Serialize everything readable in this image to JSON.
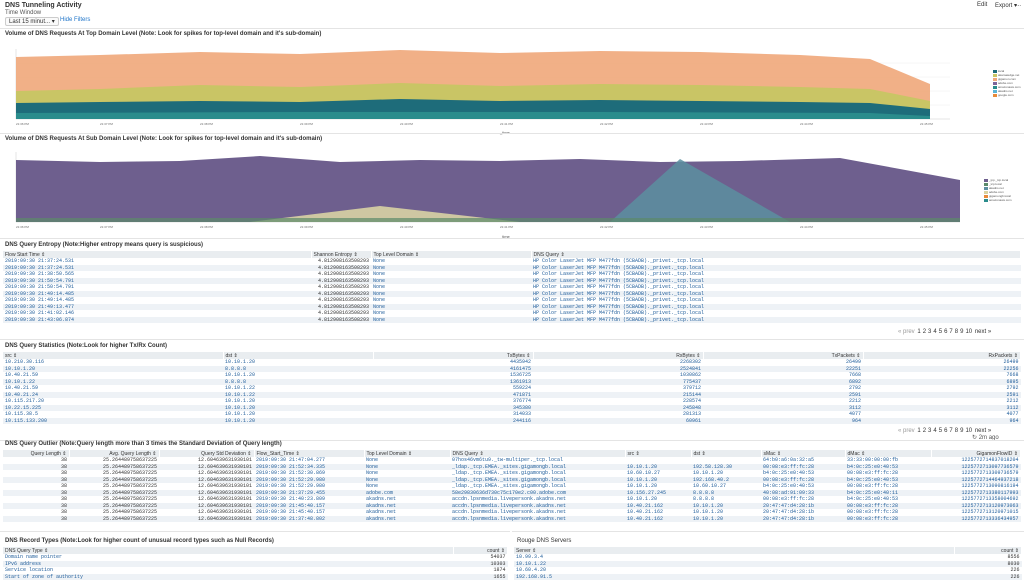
{
  "header": {
    "title": "DNS Tunneling Activity",
    "time_window_label": "Time Window",
    "time_window_value": "Last 15 minut...",
    "hide_filters": "Hide Filters",
    "edit": "Edit",
    "export": "Export",
    "more": "..."
  },
  "chart1": {
    "title": "Volume of DNS Requests At Top Domain Level (Note: Look for spikes for top-level domain and it's sub-domain)",
    "xlabel": "_time",
    "ylabel": "",
    "legend": [
      "local",
      "akamaiedge.net",
      "gigamon.com",
      "adobe.com",
      "amazonaws.com",
      "akadns.net",
      "google.com",
      "other"
    ]
  },
  "chart2": {
    "title": "Volume of DNS Requests At Sub Domain Level (Note: Look for spikes for top-level domain and it's sub-domain)",
    "xlabel": "_time",
    "ylabel": "",
    "legend": [
      "_ipp._tcp.local",
      "_tcp.local",
      "akadns.net",
      "adobe.com",
      "gigamongb.local",
      "amazonaws.com",
      "other"
    ]
  },
  "chart_data": [
    {
      "type": "area",
      "title": "Volume of DNS Requests At Top Domain Level (Note: Look for spikes for top-level domain and it's sub-domain)",
      "series": [
        {
          "name": "local",
          "values": [
            90,
            95,
            92,
            98,
            94,
            96,
            93,
            88,
            70
          ]
        },
        {
          "name": "akamaiedge.net",
          "values": [
            40,
            42,
            40,
            44,
            42,
            43,
            42,
            40,
            30
          ]
        },
        {
          "name": "gigamon.com",
          "values": [
            60,
            62,
            58,
            64,
            60,
            61,
            59,
            57,
            45
          ]
        },
        {
          "name": "other",
          "values": [
            50,
            55,
            52,
            56,
            54,
            55,
            53,
            51,
            42
          ]
        }
      ]
    },
    {
      "type": "area",
      "title": "Volume of DNS Requests At Sub Domain Level (Note: Look for spikes for top-level domain and it's sub-domain)",
      "series": [
        {
          "name": "_ipp._tcp.local",
          "values": [
            2100,
            2000,
            2050,
            2000,
            2250,
            2000,
            2050,
            1950,
            2000,
            1950,
            2000,
            1500
          ]
        },
        {
          "name": "akadns.net",
          "values": [
            0,
            0,
            0,
            0,
            0,
            0,
            0,
            0,
            1900,
            0,
            0,
            0
          ]
        },
        {
          "name": "adobe.com",
          "values": [
            0,
            0,
            0,
            0,
            0,
            300,
            0,
            0,
            0,
            0,
            0,
            0
          ]
        }
      ]
    }
  ],
  "entropy": {
    "title": "DNS Query Entropy (Note:Higher entropy means query is suspicious)",
    "headers": [
      "Flow Start Time",
      "Shannon Entropy",
      "Top Level Domain",
      "DNS Query"
    ],
    "rows": [
      [
        "2019:09:30 21:37:24.531",
        "4.812908163508293",
        "None",
        "HP Color LaserJet MFP M477fdn (5CBADB)._privet._tcp.local"
      ],
      [
        "2019:09:30 21:37:24.531",
        "4.812908163508293",
        "None",
        "HP Color LaserJet MFP M477fdn (5CBADB)._privet._tcp.local"
      ],
      [
        "2019:09:30 21:38:50.565",
        "4.812908163508293",
        "None",
        "HP Color LaserJet MFP M477fdn (5CBADB)._privet._tcp.local"
      ],
      [
        "2019:09:30 21:50:54.791",
        "4.812908163508293",
        "None",
        "HP Color LaserJet MFP M477fdn (5CBADB)._privet._tcp.local"
      ],
      [
        "2019:09:30 21:50:54.791",
        "4.812908163508293",
        "None",
        "HP Color LaserJet MFP M477fdn (5CBADB)._privet._tcp.local"
      ],
      [
        "2019:09:30 21:49:14.485",
        "4.812908163508293",
        "None",
        "HP Color LaserJet MFP M477fdn (5CBADB)._privet._tcp.local"
      ],
      [
        "2019:09:30 21:49:14.485",
        "4.812908163508293",
        "None",
        "HP Color LaserJet MFP M477fdn (5CBADB)._privet._tcp.local"
      ],
      [
        "2019:09:30 21:49:13.477",
        "4.812908163508293",
        "None",
        "HP Color LaserJet MFP M477fdn (5CBADB)._privet._tcp.local"
      ],
      [
        "2019:09:30 21:41:02.146",
        "4.812908163508293",
        "None",
        "HP Color LaserJet MFP M477fdn (5CBADB)._privet._tcp.local"
      ],
      [
        "2019:09:30 21:43:06.874",
        "4.812908163508293",
        "None",
        "HP Color LaserJet MFP M477fdn (5CBADB)._privet._tcp.local"
      ]
    ],
    "pager": {
      "prev": "« prev",
      "pages": [
        "1",
        "2",
        "3",
        "4",
        "5",
        "6",
        "7",
        "8",
        "9",
        "10"
      ],
      "next": "next »"
    }
  },
  "stats": {
    "title": "DNS Query Statistics (Note:Look for higher Tx/Rx Count)",
    "headers": [
      "src",
      "dst",
      "TxBytes",
      "RxBytes",
      "TxPackets",
      "RxPackets"
    ],
    "rows": [
      [
        "10.210.30.116",
        "10.10.1.20",
        "4435942",
        "2268302",
        "26499",
        "26499"
      ],
      [
        "10.10.1.20",
        "8.8.8.8",
        "4161475",
        "2524841",
        "22251",
        "22256"
      ],
      [
        "10.40.21.59",
        "10.10.1.20",
        "1536725",
        "1030862",
        "7668",
        "7668"
      ],
      [
        "10.10.1.22",
        "8.8.8.8",
        "1361913",
        "775437",
        "6892",
        "6895"
      ],
      [
        "10.40.21.59",
        "10.10.1.22",
        "559224",
        "379712",
        "2792",
        "2792"
      ],
      [
        "10.40.21.24",
        "10.10.1.22",
        "471871",
        "215144",
        "2591",
        "2591"
      ],
      [
        "10.115.217.20",
        "10.10.1.20",
        "376774",
        "228574",
        "2212",
        "2212"
      ],
      [
        "10.22.15.225",
        "10.10.1.20",
        "345380",
        "245848",
        "3112",
        "3112"
      ],
      [
        "10.115.38.5",
        "10.10.1.20",
        "314033",
        "281313",
        "4077",
        "4077"
      ],
      [
        "10.115.133.200",
        "10.10.1.20",
        "244116",
        "60961",
        "964",
        "964"
      ]
    ],
    "pager": {
      "prev": "« prev",
      "pages": [
        "1",
        "2",
        "3",
        "4",
        "5",
        "6",
        "7",
        "8",
        "9",
        "10"
      ],
      "next": "next »"
    },
    "footer": "2m ago"
  },
  "outlier": {
    "title": "DNS Query Outlier (Note:Query length more than 3 times the Standard Deviation of Query length)",
    "headers": [
      "Query Length",
      "Avg. Query Length",
      "Query Std Deviation",
      "Flow_Start_Time",
      "Top Level Domain",
      "DNS Query",
      "src",
      "dst",
      "sMac",
      "dMac",
      "GigamonFlowID"
    ],
    "rows": [
      [
        "38",
        "25.264489758637225",
        "12.604639631930101",
        "2019:09:30 21:47:04.277",
        "None",
        "07hos46vm6tu9._tw-multiper._tcp.local",
        "",
        "",
        "64:b0:a6:0a:32:a5",
        "33:33:00:00:00:fb",
        "1225772714837018204"
      ],
      [
        "38",
        "25.264489758637225",
        "12.604639631930101",
        "2019:09:30 21:52:34.335",
        "None",
        "_ldap._tcp.EMEA._sites.gigamongb.local",
        "10.10.1.20",
        "192.58.128.30",
        "00:08:e3:ff:fc:28",
        "b4:0c:25:e0:40:53",
        "1225772713097736579"
      ],
      [
        "38",
        "25.264489758637225",
        "12.604639631930101",
        "2019:09:30 21:52:30.869",
        "None",
        "_ldap._tcp.EMEA._sites.gigamongb.local",
        "10.60.10.27",
        "10.10.1.20",
        "b4:0c:25:e0:40:53",
        "00:08:e3:ff:fc:28",
        "1225772713309736579"
      ],
      [
        "38",
        "25.264489758637225",
        "12.604639631930101",
        "2019:09:30 21:52:29.980",
        "None",
        "_ldap._tcp.EMEA._sites.gigamongb.local",
        "10.10.1.20",
        "192.168.40.2",
        "00:08:e3:ff:fc:28",
        "b4:0c:25:e0:40:53",
        "1225772714464937218"
      ],
      [
        "38",
        "25.264489758637225",
        "12.604639631930101",
        "2019:09:30 21:52:29.980",
        "None",
        "_ldap._tcp.EMEA._sites.gigamongb.local",
        "10.10.1.20",
        "10.60.10.27",
        "b4:0c:25:e0:40:53",
        "00:08:e3:ff:fc:28",
        "1225772713090816194"
      ],
      [
        "38",
        "25.264489758637225",
        "12.604639631930101",
        "2019:09:30 21:37:29.455",
        "adobe.com",
        "58e29830636d730c75c170e2.c00.adobe.com",
        "10.156.27.245",
        "8.8.8.8",
        "40:08:ad:91:09:33",
        "b4:0c:25:e0:40:11",
        "1225772713380117993"
      ],
      [
        "38",
        "25.264489758637225",
        "12.604639631930101",
        "2019:09:30 21:40:23.809",
        "akadns.net",
        "accdn.lpsnmedia.livepersonk.akadns.net",
        "10.10.1.20",
        "8.8.8.8",
        "00:08:e3:ff:fc:28",
        "b4:0c:25:e0:40:53",
        "1225772713358004692"
      ],
      [
        "38",
        "25.264489758637225",
        "12.604639631930101",
        "2019:09:30 21:45:40.157",
        "akadns.net",
        "accdn.lpsnmedia.livepersonk.akadns.net",
        "10.40.21.162",
        "10.10.1.20",
        "20:47:47:d4:28:1b",
        "00:08:e3:ff:fc:28",
        "1225772713120973063"
      ],
      [
        "38",
        "25.264489758637225",
        "12.604639631930101",
        "2019:09:30 21:45:40.157",
        "akadns.net",
        "accdn.lpsnmedia.livepersonk.akadns.net",
        "10.40.21.162",
        "10.10.1.20",
        "20:47:47:d4:28:1b",
        "00:08:e3:ff:fc:28",
        "1225772713120971015"
      ],
      [
        "38",
        "25.264489758637225",
        "12.604639631930101",
        "2019:09:30 21:37:48.802",
        "akadns.net",
        "accdn.lpsnmedia.livepersonk.akadns.net",
        "10.40.21.162",
        "10.10.1.20",
        "20:47:47:d4:28:1b",
        "00:08:e3:ff:fc:28",
        "1225772713336434957"
      ]
    ],
    "pager": {
      "prev": "« prev",
      "pages": [
        "1",
        "2",
        "3",
        "4",
        "5",
        "6",
        "7",
        "8",
        "9",
        "10"
      ],
      "next": "next »"
    }
  },
  "records": {
    "title": "DNS Record Types (Note:Look for higher count of unusual record types such as Null Records)",
    "headers": [
      "DNS Query Type",
      "count"
    ],
    "rows": [
      [
        "Domain name pointer",
        "54037"
      ],
      [
        "IPv6 address",
        "10303"
      ],
      [
        "Service location",
        "1874"
      ],
      [
        "Start of zone of authority",
        "1655"
      ]
    ]
  },
  "rogue": {
    "title": "Rouge DNS Servers",
    "headers": [
      "Server",
      "count"
    ],
    "rows": [
      [
        "10.99.3.4",
        "8556"
      ],
      [
        "10.10.1.22",
        "8030"
      ],
      [
        "10.60.4.20",
        "226"
      ],
      [
        "192.168.91.5",
        "226"
      ]
    ]
  }
}
